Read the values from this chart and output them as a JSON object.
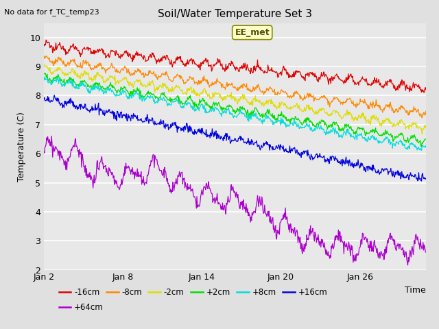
{
  "title": "Soil/Water Temperature Set 3",
  "subtitle": "No data for f_TC_temp23",
  "xlabel": "Time",
  "ylabel": "Temperature (C)",
  "ylim": [
    2.0,
    10.5
  ],
  "xlim_days": [
    0,
    29
  ],
  "background_color": "#e0e0e0",
  "plot_bg_color": "#e8e8e8",
  "annotation_label": "EE_met",
  "series": [
    {
      "label": "-16cm",
      "color": "#dd0000",
      "start": 9.72,
      "end": 8.25,
      "noise": 0.06,
      "diurnal": 0.1,
      "phase": 0.0
    },
    {
      "label": "-8cm",
      "color": "#ff8800",
      "start": 9.25,
      "end": 7.4,
      "noise": 0.05,
      "diurnal": 0.09,
      "phase": 0.4
    },
    {
      "label": "-2cm",
      "color": "#dddd00",
      "start": 8.92,
      "end": 6.9,
      "noise": 0.05,
      "diurnal": 0.09,
      "phase": 0.8
    },
    {
      "label": "+2cm",
      "color": "#00dd00",
      "start": 8.65,
      "end": 6.42,
      "noise": 0.05,
      "diurnal": 0.09,
      "phase": 1.2
    },
    {
      "label": "+8cm",
      "color": "#00dddd",
      "start": 8.55,
      "end": 6.18,
      "noise": 0.05,
      "diurnal": 0.08,
      "phase": 1.6
    },
    {
      "label": "+16cm",
      "color": "#0000dd",
      "start": 7.9,
      "end": 5.1,
      "noise": 0.07,
      "diurnal": 0.05,
      "phase": 2.0
    },
    {
      "label": "+64cm",
      "color": "#aa00cc",
      "start": 6.1,
      "end": 2.6,
      "noise": 0.12,
      "diurnal": 0.3,
      "phase": 0.0,
      "special": true
    }
  ],
  "tick_labels": [
    "Jan 2",
    "Jan 8",
    "Jan 14",
    "Jan 20",
    "Jan 26"
  ],
  "tick_positions": [
    0,
    6,
    12,
    18,
    24
  ],
  "grid_color": "#ffffff",
  "ytick_color": "#000000"
}
